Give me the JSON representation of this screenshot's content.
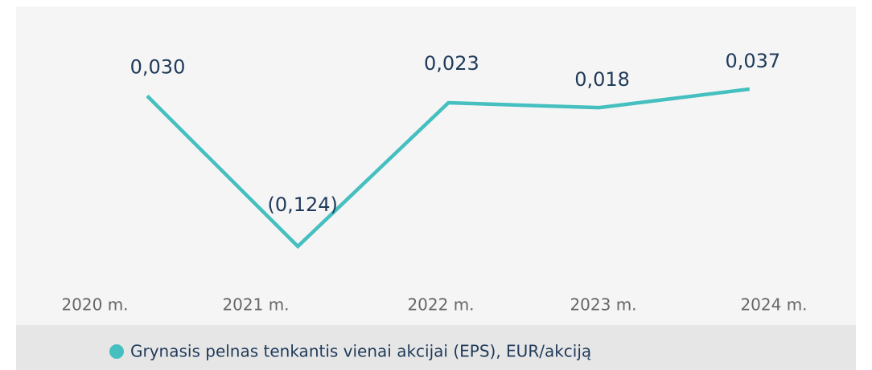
{
  "chart_data": {
    "type": "line",
    "categories": [
      "2020 m.",
      "2021 m.",
      "2022 m.",
      "2023 m.",
      "2024 m."
    ],
    "series": [
      {
        "name": "Grynasis pelnas tenkantis vienai akcijai (EPS), EUR/akciją",
        "color": "#45bfbf",
        "values": [
          0.03,
          -0.124,
          0.023,
          0.018,
          0.037
        ],
        "value_labels": [
          "0,030",
          "(0,124)",
          "0,023",
          "0,018",
          "0,037"
        ]
      }
    ]
  }
}
